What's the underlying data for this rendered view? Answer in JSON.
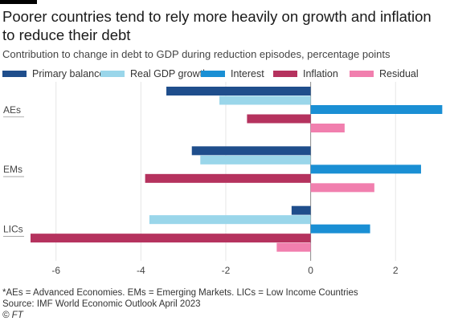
{
  "header": {
    "title": "Poorer countries tend to rely more heavily on growth and inflation to reduce their debt",
    "subtitle": "Contribution to change in debt to GDP during reduction episodes, percentage points"
  },
  "footer": {
    "footnote": "*AEs = Advanced Economies. EMs = Emerging Markets. LICs = Low Income Countries",
    "source": "Source: IMF World Economic Outlook April 2023",
    "credit": "© FT"
  },
  "chart_data": {
    "type": "bar",
    "orientation": "horizontal",
    "title": "Poorer countries tend to rely more heavily on growth and inflation to reduce their debt",
    "subtitle": "Contribution to change in debt to GDP during reduction episodes, percentage points",
    "categories": [
      "AEs",
      "EMs",
      "LICs"
    ],
    "series": [
      {
        "name": "Primary balance",
        "color": "#1f4e8c",
        "values": [
          -3.4,
          -2.8,
          -0.45
        ]
      },
      {
        "name": "Real GDP growth",
        "color": "#9ad6ea",
        "values": [
          -2.15,
          -2.6,
          -3.8
        ]
      },
      {
        "name": "Interest",
        "color": "#1a8fd4",
        "values": [
          3.1,
          2.6,
          1.4
        ]
      },
      {
        "name": "Inflation",
        "color": "#b5325e",
        "values": [
          -1.5,
          -3.9,
          -6.6
        ]
      },
      {
        "name": "Residual",
        "color": "#f17fae",
        "values": [
          0.8,
          1.5,
          -0.8
        ]
      }
    ],
    "xlim": [
      -6.6,
      3.15
    ],
    "xticks": [
      -6,
      -4,
      -2,
      0,
      2
    ],
    "xticklabels": [
      "-6",
      "-4",
      "-2",
      "0",
      "2"
    ],
    "grid": true,
    "legend": "top"
  }
}
